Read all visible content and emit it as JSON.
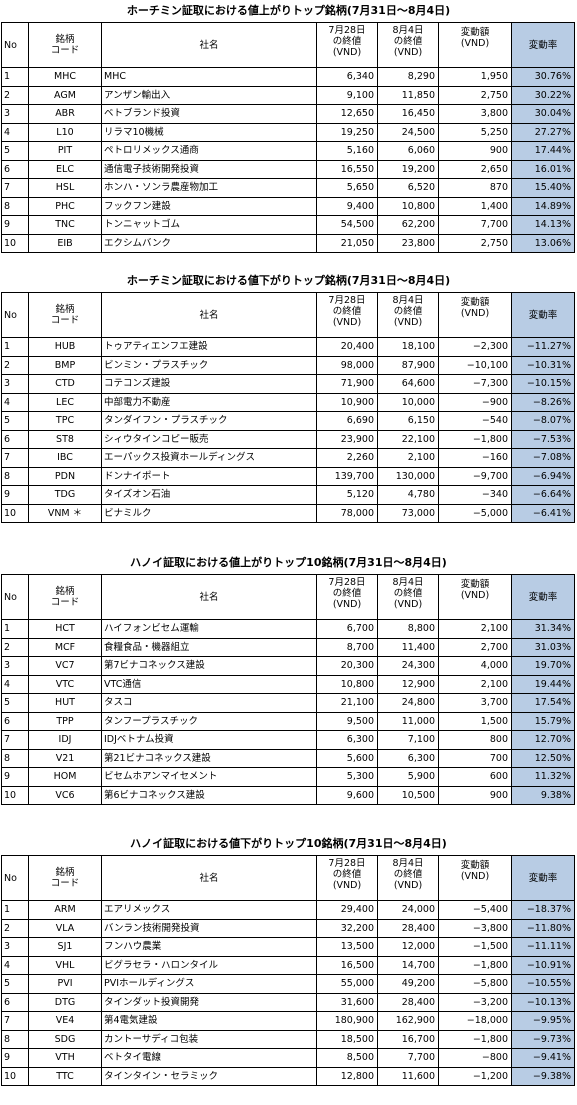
{
  "headers": {
    "no": "No",
    "code": "銘柄\nコード",
    "name": "社名",
    "before": "7月28日\nの終値\n(VND)",
    "after": "8月4日\nの終値\n(VND)",
    "change": "変動額\n(VND)",
    "rate": "変動率"
  },
  "tables": [
    {
      "title": "ホーチミン証取における値上がりトップ銘柄(7月31日～8月4日)",
      "rows": [
        {
          "no": "1",
          "code": "MHC",
          "name": "MHC",
          "before": "6,340",
          "after": "8,290",
          "change": "1,950",
          "rate": "30.76%"
        },
        {
          "no": "2",
          "code": "AGM",
          "name": "アンザン輸出入",
          "before": "9,100",
          "after": "11,850",
          "change": "2,750",
          "rate": "30.22%"
        },
        {
          "no": "3",
          "code": "ABR",
          "name": "ベトブランド投資",
          "before": "12,650",
          "after": "16,450",
          "change": "3,800",
          "rate": "30.04%"
        },
        {
          "no": "4",
          "code": "L10",
          "name": "リラマ10機械",
          "before": "19,250",
          "after": "24,500",
          "change": "5,250",
          "rate": "27.27%"
        },
        {
          "no": "5",
          "code": "PIT",
          "name": "ペトロリメックス通商",
          "before": "5,160",
          "after": "6,060",
          "change": "900",
          "rate": "17.44%"
        },
        {
          "no": "6",
          "code": "ELC",
          "name": "通信電子技術開発投資",
          "before": "16,550",
          "after": "19,200",
          "change": "2,650",
          "rate": "16.01%"
        },
        {
          "no": "7",
          "code": "HSL",
          "name": "ホンハ・ソンラ農産物加工",
          "before": "5,650",
          "after": "6,520",
          "change": "870",
          "rate": "15.40%"
        },
        {
          "no": "8",
          "code": "PHC",
          "name": "フックフン建設",
          "before": "9,400",
          "after": "10,800",
          "change": "1,400",
          "rate": "14.89%"
        },
        {
          "no": "9",
          "code": "TNC",
          "name": "トンニャットゴム",
          "before": "54,500",
          "after": "62,200",
          "change": "7,700",
          "rate": "14.13%"
        },
        {
          "no": "10",
          "code": "EIB",
          "name": "エクシムバンク",
          "before": "21,050",
          "after": "23,800",
          "change": "2,750",
          "rate": "13.06%"
        }
      ]
    },
    {
      "title": "ホーチミン証取における値下がりトップ銘柄(7月31日～8月4日)",
      "rows": [
        {
          "no": "1",
          "code": "HUB",
          "name": "トゥアティエンフエ建設",
          "before": "20,400",
          "after": "18,100",
          "change": "−2,300",
          "rate": "−11.27%"
        },
        {
          "no": "2",
          "code": "BMP",
          "name": "ビンミン・プラスチック",
          "before": "98,000",
          "after": "87,900",
          "change": "−10,100",
          "rate": "−10.31%"
        },
        {
          "no": "3",
          "code": "CTD",
          "name": "コテコンズ建設",
          "before": "71,900",
          "after": "64,600",
          "change": "−7,300",
          "rate": "−10.15%"
        },
        {
          "no": "4",
          "code": "LEC",
          "name": "中部電力不動産",
          "before": "10,900",
          "after": "10,000",
          "change": "−900",
          "rate": "−8.26%"
        },
        {
          "no": "5",
          "code": "TPC",
          "name": "タンダイフン・プラスチック",
          "before": "6,690",
          "after": "6,150",
          "change": "−540",
          "rate": "−8.07%"
        },
        {
          "no": "6",
          "code": "ST8",
          "name": "シィウタインコピー販売",
          "before": "23,900",
          "after": "22,100",
          "change": "−1,800",
          "rate": "−7.53%"
        },
        {
          "no": "7",
          "code": "IBC",
          "name": "エーパックス投資ホールディングス",
          "before": "2,260",
          "after": "2,100",
          "change": "−160",
          "rate": "−7.08%"
        },
        {
          "no": "8",
          "code": "PDN",
          "name": "ドンナイポート",
          "before": "139,700",
          "after": "130,000",
          "change": "−9,700",
          "rate": "−6.94%"
        },
        {
          "no": "9",
          "code": "TDG",
          "name": "タイズオン石油",
          "before": "5,120",
          "after": "4,780",
          "change": "−340",
          "rate": "−6.64%"
        },
        {
          "no": "10",
          "code": "VNM ＊",
          "name": "ビナミルク",
          "before": "78,000",
          "after": "73,000",
          "change": "−5,000",
          "rate": "−6.41%"
        }
      ]
    },
    {
      "title": "ハノイ証取における値上がりトップ10銘柄(7月31日～8月4日)",
      "rows": [
        {
          "no": "1",
          "code": "HCT",
          "name": "ハイフォンビセム運輸",
          "before": "6,700",
          "after": "8,800",
          "change": "2,100",
          "rate": "31.34%"
        },
        {
          "no": "2",
          "code": "MCF",
          "name": "食糧食品・機器組立",
          "before": "8,700",
          "after": "11,400",
          "change": "2,700",
          "rate": "31.03%"
        },
        {
          "no": "3",
          "code": "VC7",
          "name": "第7ビナコネックス建設",
          "before": "20,300",
          "after": "24,300",
          "change": "4,000",
          "rate": "19.70%"
        },
        {
          "no": "4",
          "code": "VTC",
          "name": "VTC通信",
          "before": "10,800",
          "after": "12,900",
          "change": "2,100",
          "rate": "19.44%"
        },
        {
          "no": "5",
          "code": "HUT",
          "name": "タスコ",
          "before": "21,100",
          "after": "24,800",
          "change": "3,700",
          "rate": "17.54%"
        },
        {
          "no": "6",
          "code": "TPP",
          "name": "タンフープラスチック",
          "before": "9,500",
          "after": "11,000",
          "change": "1,500",
          "rate": "15.79%"
        },
        {
          "no": "7",
          "code": "IDJ",
          "name": "IDJベトナム投資",
          "before": "6,300",
          "after": "7,100",
          "change": "800",
          "rate": "12.70%"
        },
        {
          "no": "8",
          "code": "V21",
          "name": "第21ビナコネックス建設",
          "before": "5,600",
          "after": "6,300",
          "change": "700",
          "rate": "12.50%"
        },
        {
          "no": "9",
          "code": "HOM",
          "name": "ビセムホアンマイセメント",
          "before": "5,300",
          "after": "5,900",
          "change": "600",
          "rate": "11.32%"
        },
        {
          "no": "10",
          "code": "VC6",
          "name": "第6ビナコネックス建設",
          "before": "9,600",
          "after": "10,500",
          "change": "900",
          "rate": "9.38%"
        }
      ]
    },
    {
      "title": "ハノイ証取における値下がりトップ10銘柄(7月31日～8月4日)",
      "rows": [
        {
          "no": "1",
          "code": "ARM",
          "name": "エアリメックス",
          "before": "29,400",
          "after": "24,000",
          "change": "−5,400",
          "rate": "−18.37%"
        },
        {
          "no": "2",
          "code": "VLA",
          "name": "バンラン技術開発投資",
          "before": "32,200",
          "after": "28,400",
          "change": "−3,800",
          "rate": "−11.80%"
        },
        {
          "no": "3",
          "code": "SJ1",
          "name": "フンハウ農業",
          "before": "13,500",
          "after": "12,000",
          "change": "−1,500",
          "rate": "−11.11%"
        },
        {
          "no": "4",
          "code": "VHL",
          "name": "ビグラセラ・ハロンタイル",
          "before": "16,500",
          "after": "14,700",
          "change": "−1,800",
          "rate": "−10.91%"
        },
        {
          "no": "5",
          "code": "PVI",
          "name": "PVIホールディングス",
          "before": "55,000",
          "after": "49,200",
          "change": "−5,800",
          "rate": "−10.55%"
        },
        {
          "no": "6",
          "code": "DTG",
          "name": "タインダット投資開発",
          "before": "31,600",
          "after": "28,400",
          "change": "−3,200",
          "rate": "−10.13%"
        },
        {
          "no": "7",
          "code": "VE4",
          "name": "第4電気建設",
          "before": "180,900",
          "after": "162,900",
          "change": "−18,000",
          "rate": "−9.95%"
        },
        {
          "no": "8",
          "code": "SDG",
          "name": "カントーサディコ包装",
          "before": "18,500",
          "after": "16,700",
          "change": "−1,800",
          "rate": "−9.73%"
        },
        {
          "no": "9",
          "code": "VTH",
          "name": "ベトタイ電線",
          "before": "8,500",
          "after": "7,700",
          "change": "−800",
          "rate": "−9.41%"
        },
        {
          "no": "10",
          "code": "TTC",
          "name": "タインタイン・セラミック",
          "before": "12,800",
          "after": "11,600",
          "change": "−1,200",
          "rate": "−9.38%"
        }
      ]
    }
  ]
}
